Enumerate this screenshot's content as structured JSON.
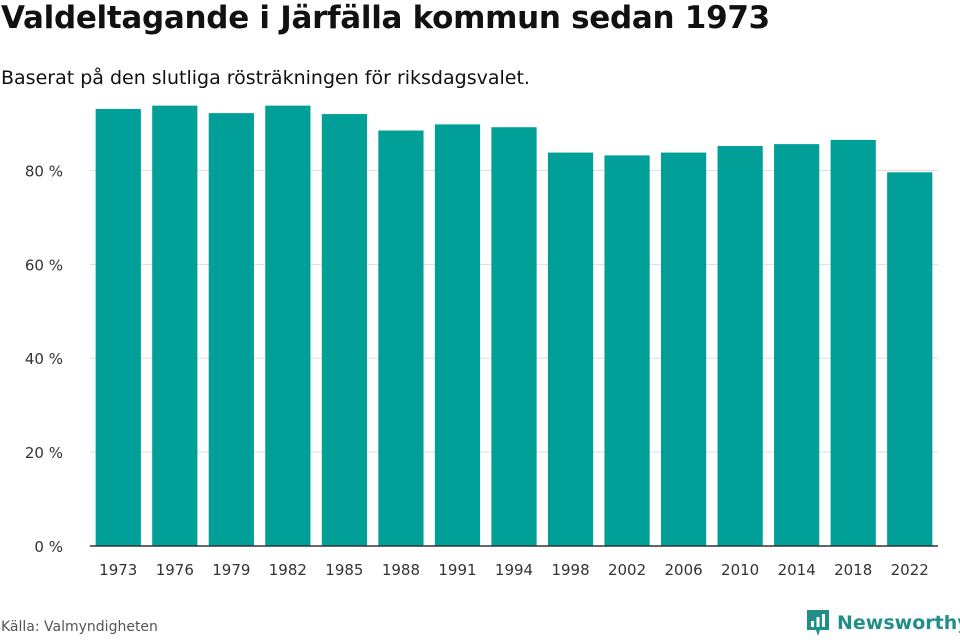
{
  "title": "Valdeltagande i Järfälla kommun sedan 1973",
  "subtitle": "Baserat på den slutliga rösträkningen för riksdagsvalet.",
  "source": "Källa: Valmyndigheten",
  "brand": {
    "name": "Newsworthy",
    "icon": "newsworthy-logo-icon",
    "color": "#1f8f87"
  },
  "colors": {
    "bar": "#00a098",
    "grid": "#dddddd",
    "axis": "#333333"
  },
  "chart_data": {
    "type": "bar",
    "categories": [
      "1973",
      "1976",
      "1979",
      "1982",
      "1985",
      "1988",
      "1991",
      "1994",
      "1998",
      "2002",
      "2006",
      "2010",
      "2014",
      "2018",
      "2022"
    ],
    "values": [
      93.1,
      93.8,
      92.2,
      93.8,
      92.0,
      88.5,
      89.8,
      89.2,
      83.8,
      83.2,
      83.8,
      85.2,
      85.6,
      86.5,
      79.6
    ],
    "ylim": [
      0,
      95
    ],
    "yticks": [
      0,
      20,
      40,
      60,
      80
    ],
    "ytick_labels": [
      "0 %",
      "20 %",
      "40 %",
      "60 %",
      "80 %"
    ],
    "xlabel": "",
    "ylabel": "",
    "grid": true
  }
}
